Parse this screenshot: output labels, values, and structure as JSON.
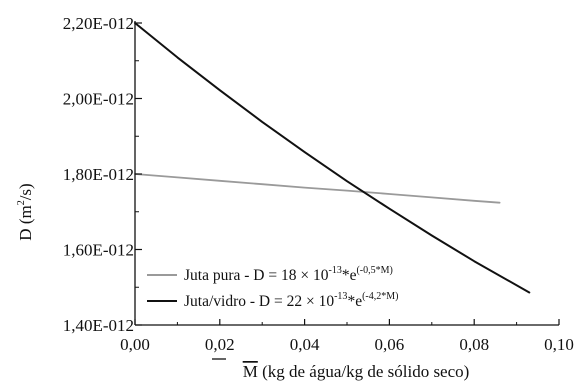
{
  "chart_data": {
    "type": "line",
    "title": "",
    "xlabel": "M (kg de água/kg de sólido seco)",
    "ylabel": "D (m²/s)",
    "xlim": [
      0,
      0.1
    ],
    "ylim": [
      1.4e-12,
      2.2e-12
    ],
    "x_ticks": [
      "0,00",
      "0,02",
      "0,04",
      "0,06",
      "0,08",
      "0,10"
    ],
    "y_ticks": [
      "1,40E-012",
      "1,60E-012",
      "1,80E-012",
      "2,00E-012",
      "2,20E-012"
    ],
    "grid": false,
    "legend_position": "bottom-left",
    "series": [
      {
        "name": "Juta pura - D = 18 × 10⁻¹³*e^(-0,5*M)",
        "color": "#9a9a9a",
        "x": [
          0.0,
          0.01,
          0.02,
          0.03,
          0.04,
          0.05,
          0.06,
          0.07,
          0.08,
          0.086
        ],
        "y": [
          1.8e-12,
          1.791e-12,
          1.782e-12,
          1.773e-12,
          1.764e-12,
          1.756e-12,
          1.747e-12,
          1.738e-12,
          1.729e-12,
          1.724e-12
        ]
      },
      {
        "name": "Juta/vidro - D = 22 × 10⁻¹³*e^(-4,2*M)",
        "color": "#111111",
        "x": [
          0.0,
          0.01,
          0.02,
          0.03,
          0.04,
          0.05,
          0.06,
          0.07,
          0.08,
          0.093
        ],
        "y": [
          2.2e-12,
          2.109e-12,
          2.022e-12,
          1.938e-12,
          1.858e-12,
          1.781e-12,
          1.708e-12,
          1.637e-12,
          1.569e-12,
          1.486e-12
        ]
      }
    ]
  },
  "legend": {
    "items": [
      {
        "prefix": "Juta pura -  D = 18 × 10",
        "sup1": "-13",
        "mid": "*e",
        "sup2": "(-0,5*M)"
      },
      {
        "prefix": "Juta/vidro - D = 22 × 10",
        "sup1": "-13",
        "mid": "*e",
        "sup2": "(-4,2*M)"
      }
    ]
  },
  "axis_titles": {
    "x_bar": "M",
    "x_rest": " (kg de água/kg de sólido seco)",
    "y_main": "D (m",
    "y_sup": "2",
    "y_end": "/s)"
  }
}
